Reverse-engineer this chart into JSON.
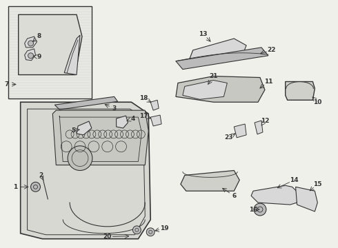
{
  "bg_color": "#f0f0eb",
  "line_color": "#333333",
  "fill_light": "#d8d8d8",
  "fill_mid": "#bbbbbb",
  "white": "#ffffff",
  "figsize": [
    4.9,
    3.6
  ],
  "dpi": 100
}
